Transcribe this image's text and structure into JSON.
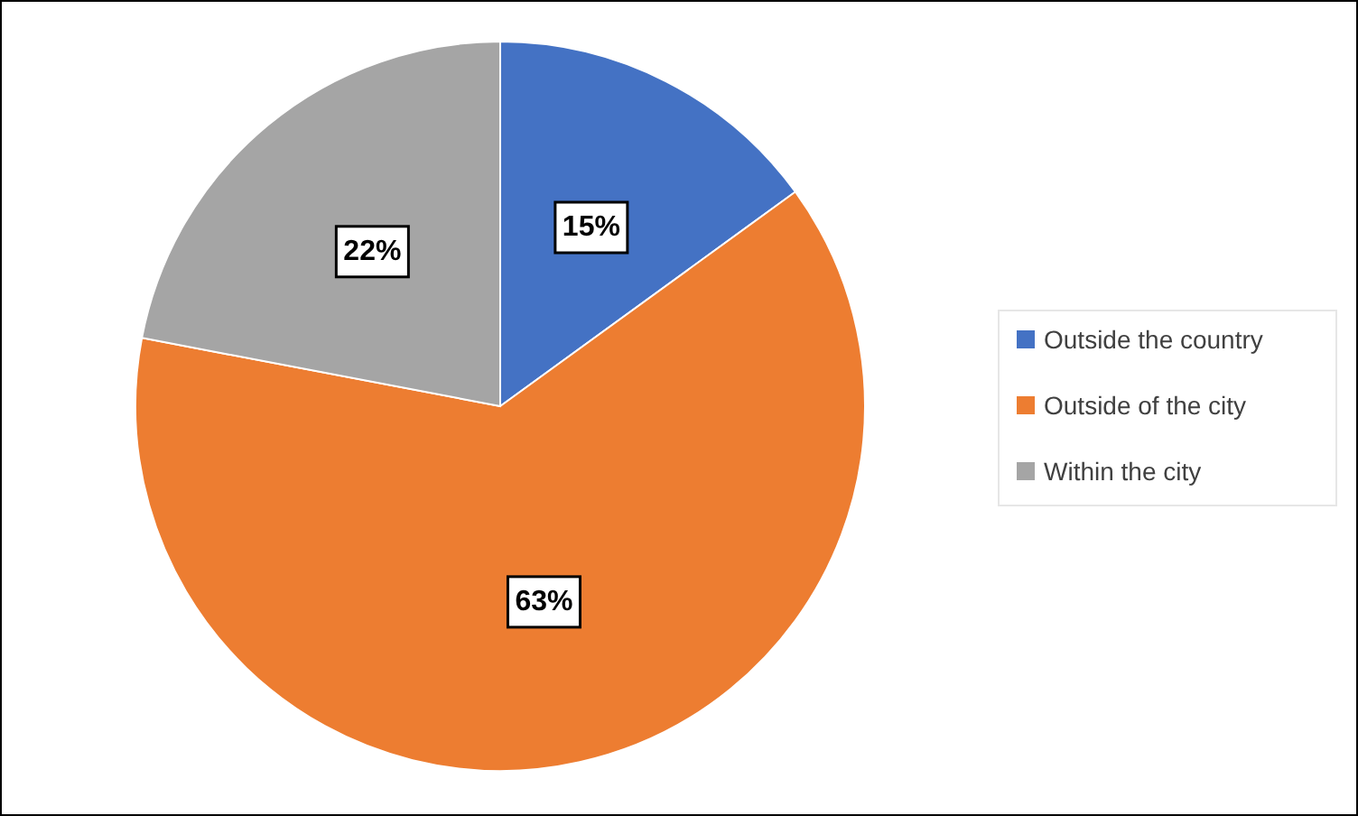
{
  "chart_data": {
    "type": "pie",
    "categories": [
      "Outside the country",
      "Outside of the city",
      "Within the city"
    ],
    "values": [
      15,
      63,
      22
    ],
    "colors": [
      "#4472c4",
      "#ed7d31",
      "#a5a5a5"
    ],
    "value_labels": [
      "15%",
      "63%",
      "22%"
    ],
    "legend": "right"
  }
}
